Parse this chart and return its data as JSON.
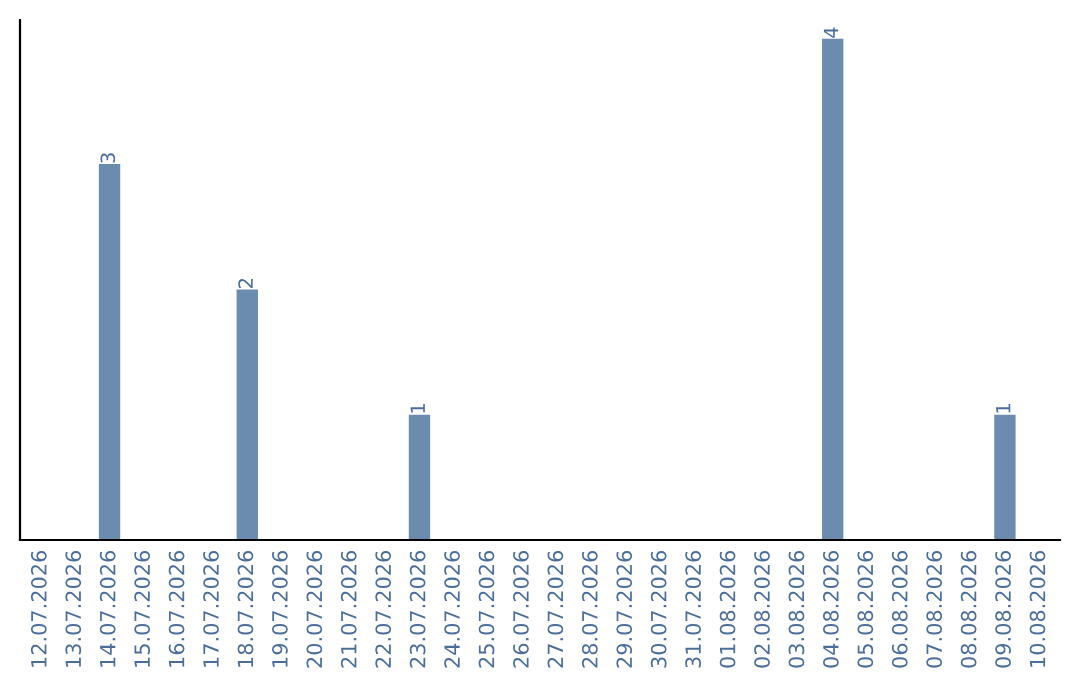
{
  "chart_data": {
    "type": "bar",
    "categories": [
      "12.07.2026",
      "13.07.2026",
      "14.07.2026",
      "15.07.2026",
      "16.07.2026",
      "17.07.2026",
      "18.07.2026",
      "19.07.2026",
      "20.07.2026",
      "21.07.2026",
      "22.07.2026",
      "23.07.2026",
      "24.07.2026",
      "25.07.2026",
      "26.07.2026",
      "27.07.2026",
      "28.07.2026",
      "29.07.2026",
      "30.07.2026",
      "31.07.2026",
      "01.08.2026",
      "02.08.2026",
      "03.08.2026",
      "04.08.2026",
      "05.08.2026",
      "06.08.2026",
      "07.08.2026",
      "08.08.2026",
      "09.08.2026",
      "10.08.2026"
    ],
    "values": [
      0,
      0,
      3,
      0,
      0,
      0,
      2,
      0,
      0,
      0,
      0,
      1,
      0,
      0,
      0,
      0,
      0,
      0,
      0,
      0,
      0,
      0,
      0,
      4,
      0,
      0,
      0,
      0,
      1,
      0
    ],
    "value_labels": [
      null,
      null,
      "3",
      null,
      null,
      null,
      "2",
      null,
      null,
      null,
      null,
      "1",
      null,
      null,
      null,
      null,
      null,
      null,
      null,
      null,
      null,
      null,
      null,
      "4",
      null,
      null,
      null,
      null,
      "1",
      null
    ],
    "color": "#6b8cae",
    "ylim": [
      0,
      4.15
    ],
    "tick_labels": "x",
    "grid": false
  }
}
